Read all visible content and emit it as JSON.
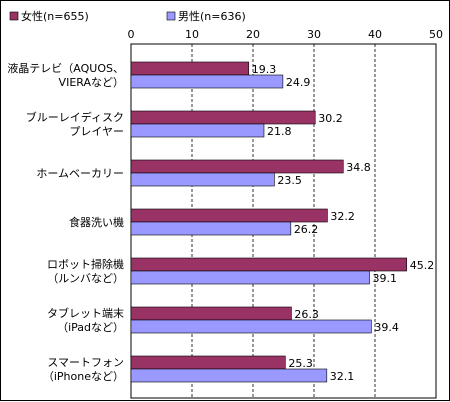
{
  "chart_data": {
    "type": "bar",
    "orientation": "horizontal",
    "categories": [
      [
        "液晶テレビ（AQUOS、",
        "VIERAなど）"
      ],
      [
        "ブルーレイディスク",
        "プレイヤー"
      ],
      [
        "ホームベーカリー"
      ],
      [
        "食器洗い機"
      ],
      [
        "ロボット掃除機",
        "（ルンバなど）"
      ],
      [
        "タブレット端末",
        "（iPadなど）"
      ],
      [
        "スマートフォン",
        "（iPhoneなど）"
      ]
    ],
    "series": [
      {
        "name": "女性(n=655)",
        "color": "#993366",
        "values": [
          19.3,
          30.2,
          34.8,
          32.2,
          45.2,
          26.3,
          25.3
        ]
      },
      {
        "name": "男性(n=636)",
        "color": "#9999ff",
        "values": [
          24.9,
          21.8,
          23.5,
          26.2,
          39.1,
          39.4,
          32.1
        ]
      }
    ],
    "xlim": [
      0,
      50
    ],
    "ticks": [
      0,
      10,
      20,
      30,
      40,
      50
    ],
    "grid": "dashed vertical",
    "legend_position": "top-left",
    "value_labels": true
  }
}
